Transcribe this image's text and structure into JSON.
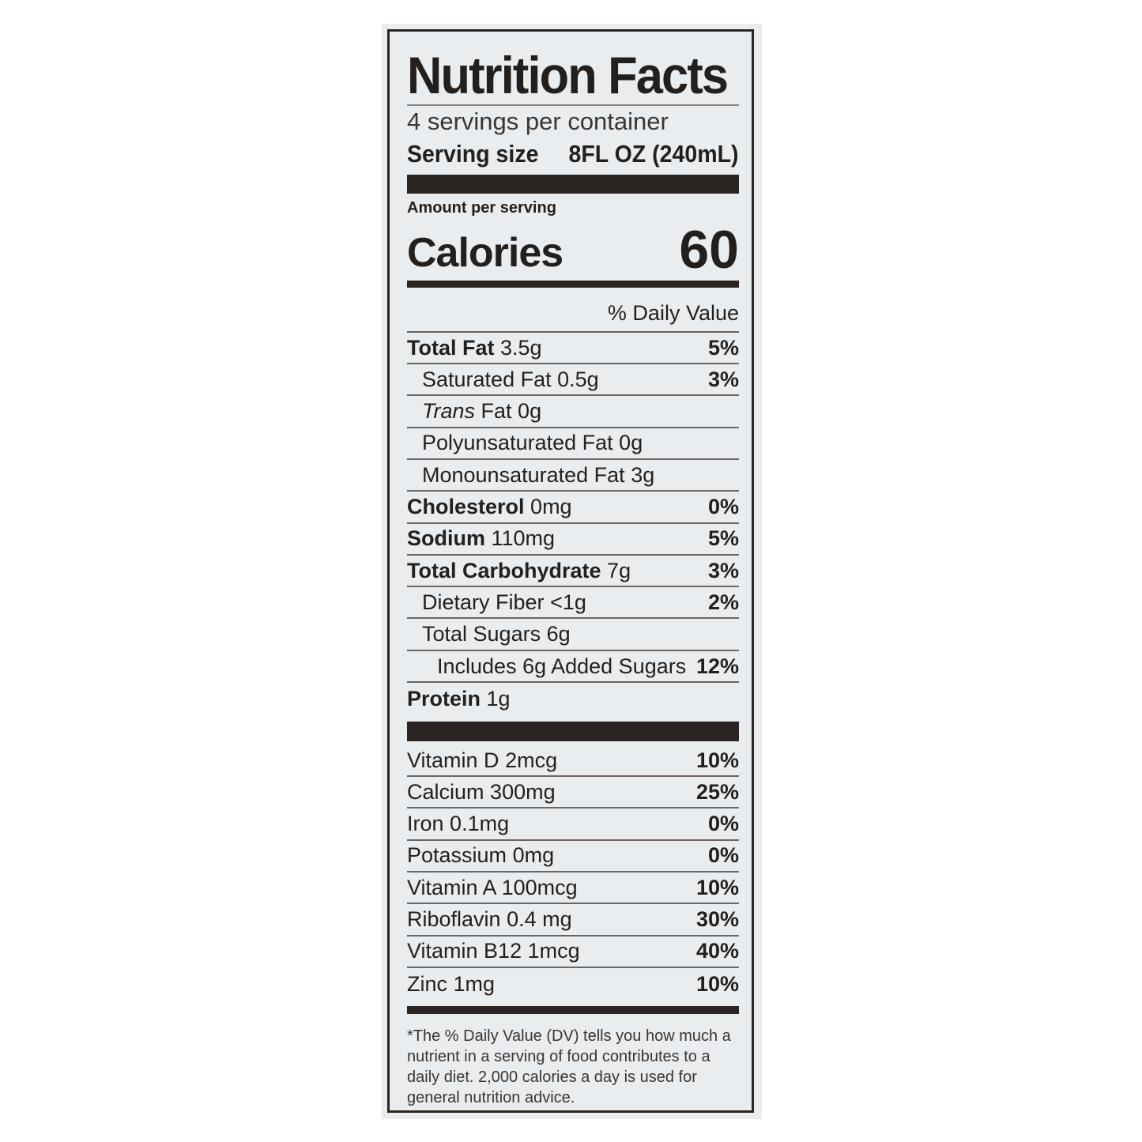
{
  "title": "Nutrition Facts",
  "servings_per_container": "4 servings per container",
  "serving_size_label": "Serving size",
  "serving_size_value": "8FL OZ (240mL)",
  "amount_per_serving": "Amount per serving",
  "calories_label": "Calories",
  "calories_value": "60",
  "daily_value_header": "% Daily Value",
  "nutrients": [
    {
      "name": "Total Fat",
      "amount": "3.5g",
      "dv": "5%",
      "bold": true,
      "indent": 0
    },
    {
      "name": "Saturated Fat",
      "amount": "0.5g",
      "dv": "3%",
      "bold": false,
      "indent": 1
    },
    {
      "name": "Trans Fat",
      "amount": "0g",
      "dv": "",
      "bold": false,
      "indent": 1,
      "italic_prefix": "Trans"
    },
    {
      "name": "Polyunsaturated Fat",
      "amount": "0g",
      "dv": "",
      "bold": false,
      "indent": 1
    },
    {
      "name": "Monounsaturated Fat",
      "amount": "3g",
      "dv": "",
      "bold": false,
      "indent": 1
    },
    {
      "name": "Cholesterol",
      "amount": "0mg",
      "dv": "0%",
      "bold": true,
      "indent": 0
    },
    {
      "name": "Sodium",
      "amount": "110mg",
      "dv": "5%",
      "bold": true,
      "indent": 0
    },
    {
      "name": "Total Carbohydrate",
      "amount": "7g",
      "dv": "3%",
      "bold": true,
      "indent": 0
    },
    {
      "name": "Dietary Fiber",
      "amount": "<1g",
      "dv": "2%",
      "bold": false,
      "indent": 1
    },
    {
      "name": "Total Sugars",
      "amount": "6g",
      "dv": "",
      "bold": false,
      "indent": 1
    },
    {
      "name": "Includes 6g Added Sugars",
      "amount": "",
      "dv": "12%",
      "bold": false,
      "indent": 2
    },
    {
      "name": "Protein",
      "amount": "1g",
      "dv": "",
      "bold": true,
      "indent": 0
    }
  ],
  "vitamins": [
    {
      "name": "Vitamin D",
      "amount": "2mcg",
      "dv": "10%"
    },
    {
      "name": "Calcium",
      "amount": "300mg",
      "dv": "25%"
    },
    {
      "name": "Iron",
      "amount": "0.1mg",
      "dv": "0%"
    },
    {
      "name": "Potassium",
      "amount": "0mg",
      "dv": "0%"
    },
    {
      "name": "Vitamin A",
      "amount": "100mcg",
      "dv": "10%"
    },
    {
      "name": "Riboflavin",
      "amount": "0.4 mg",
      "dv": "30%"
    },
    {
      "name": "Vitamin B12",
      "amount": "1mcg",
      "dv": "40%"
    },
    {
      "name": "Zinc",
      "amount": "1mg",
      "dv": "10%"
    }
  ],
  "footnote": "*The % Daily Value (DV) tells you how much a nutrient in a serving of food contributes to a daily diet. 2,000 calories a day is used for general nutrition advice."
}
